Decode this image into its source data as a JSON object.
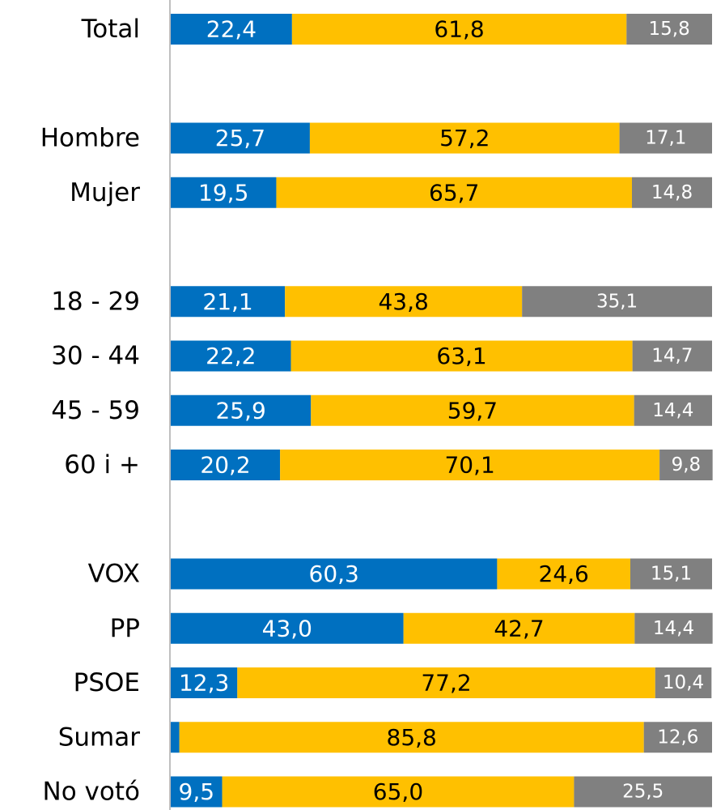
{
  "chart_data": {
    "type": "stacked-bar-horizontal",
    "categories": [
      "Total",
      null,
      "Hombre",
      "Mujer",
      null,
      "18 - 29",
      "30 - 44",
      "45 - 59",
      "60 i +",
      null,
      "VOX",
      "PP",
      "PSOE",
      "Sumar",
      "No votó"
    ],
    "xlim": [
      0,
      100
    ],
    "series": [
      {
        "color": "#0070c0",
        "label_color": "#ffffff",
        "values": [
          22.4,
          null,
          25.7,
          19.5,
          null,
          21.1,
          22.2,
          25.9,
          20.2,
          null,
          60.3,
          43.0,
          12.3,
          1.6,
          9.5
        ],
        "value_labels": [
          "22,4",
          null,
          "25,7",
          "19,5",
          null,
          "21,1",
          "22,2",
          "25,9",
          "20,2",
          null,
          "60,3",
          "43,0",
          "12,3",
          null,
          "9,5"
        ]
      },
      {
        "color": "#ffc000",
        "label_color": "#000000",
        "values": [
          61.8,
          null,
          57.2,
          65.7,
          null,
          43.8,
          63.1,
          59.7,
          70.1,
          null,
          24.6,
          42.7,
          77.2,
          85.8,
          65.0
        ],
        "value_labels": [
          "61,8",
          null,
          "57,2",
          "65,7",
          null,
          "43,8",
          "63,1",
          "59,7",
          "70,1",
          null,
          "24,6",
          "42,7",
          "77,2",
          "85,8",
          "65,0"
        ]
      },
      {
        "color": "#808080",
        "label_color": "#ffffff",
        "values": [
          15.8,
          null,
          17.1,
          14.8,
          null,
          35.1,
          14.7,
          14.4,
          9.8,
          null,
          15.1,
          14.4,
          10.4,
          12.6,
          25.5
        ],
        "value_labels": [
          "15,8",
          null,
          "17,1",
          "14,8",
          null,
          "35,1",
          "14,7",
          "14,4",
          "9,8",
          null,
          "15,1",
          "14,4",
          "10,4",
          "12,6",
          "25,5"
        ]
      }
    ]
  }
}
